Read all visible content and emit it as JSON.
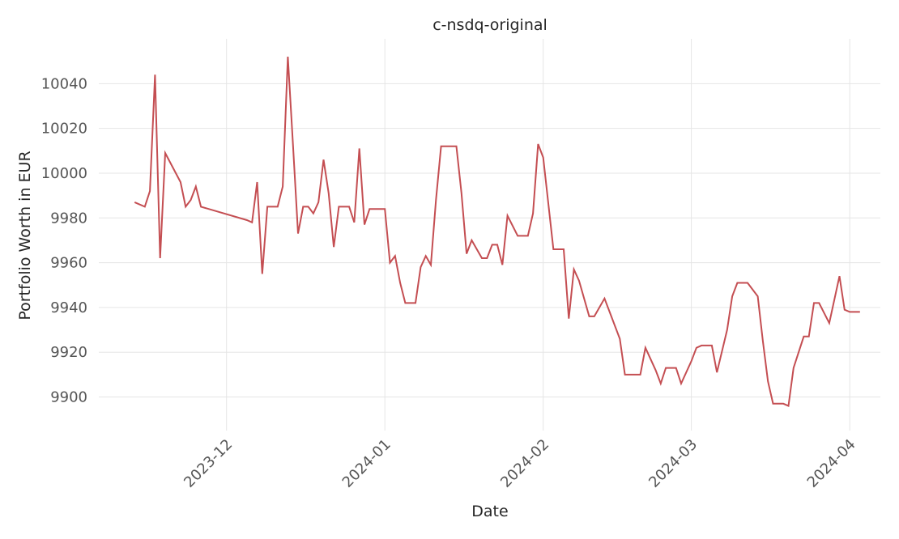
{
  "chart_data": {
    "type": "line",
    "title": "c-nsdq-original",
    "xlabel": "Date",
    "ylabel": "Portfolio Worth in EUR",
    "grid": true,
    "ylim": [
      9885,
      10060
    ],
    "xlim": [
      "2023-11-06",
      "2024-04-07"
    ],
    "y_ticks": [
      9900,
      9920,
      9940,
      9960,
      9980,
      10000,
      10020,
      10040
    ],
    "x_ticks": [
      {
        "date": "2023-12-01",
        "label": "2023-12"
      },
      {
        "date": "2024-01-01",
        "label": "2024-01"
      },
      {
        "date": "2024-02-01",
        "label": "2024-02"
      },
      {
        "date": "2024-03-01",
        "label": "2024-03"
      },
      {
        "date": "2024-04-01",
        "label": "2024-04"
      }
    ],
    "color": "#c44e52",
    "series": [
      {
        "x": [
          "2023-11-13",
          "2023-11-15",
          "2023-11-16",
          "2023-11-17",
          "2023-11-18",
          "2023-11-19",
          "2023-11-22",
          "2023-11-23",
          "2023-11-24",
          "2023-11-25",
          "2023-11-26",
          "2023-12-05",
          "2023-12-06",
          "2023-12-07",
          "2023-12-08",
          "2023-12-09",
          "2023-12-11",
          "2023-12-12",
          "2023-12-13",
          "2023-12-14",
          "2023-12-15",
          "2023-12-16",
          "2023-12-17",
          "2023-12-18",
          "2023-12-19",
          "2023-12-20",
          "2023-12-21",
          "2023-12-22",
          "2023-12-23",
          "2023-12-25",
          "2023-12-26",
          "2023-12-27",
          "2023-12-28",
          "2023-12-29",
          "2024-01-01",
          "2024-01-02",
          "2024-01-03",
          "2024-01-04",
          "2024-01-05",
          "2024-01-07",
          "2024-01-08",
          "2024-01-09",
          "2024-01-10",
          "2024-01-11",
          "2024-01-12",
          "2024-01-14",
          "2024-01-15",
          "2024-01-16",
          "2024-01-17",
          "2024-01-18",
          "2024-01-20",
          "2024-01-21",
          "2024-01-22",
          "2024-01-23",
          "2024-01-24",
          "2024-01-25",
          "2024-01-27",
          "2024-01-29",
          "2024-01-30",
          "2024-01-31",
          "2024-02-01",
          "2024-02-03",
          "2024-02-04",
          "2024-02-05",
          "2024-02-06",
          "2024-02-07",
          "2024-02-08",
          "2024-02-10",
          "2024-02-11",
          "2024-02-13",
          "2024-02-14",
          "2024-02-16",
          "2024-02-17",
          "2024-02-18",
          "2024-02-19",
          "2024-02-20",
          "2024-02-21",
          "2024-02-23",
          "2024-02-24",
          "2024-02-25",
          "2024-02-26",
          "2024-02-27",
          "2024-02-28",
          "2024-03-01",
          "2024-03-02",
          "2024-03-03",
          "2024-03-04",
          "2024-03-05",
          "2024-03-06",
          "2024-03-08",
          "2024-03-09",
          "2024-03-10",
          "2024-03-11",
          "2024-03-12",
          "2024-03-14",
          "2024-03-15",
          "2024-03-16",
          "2024-03-17",
          "2024-03-18",
          "2024-03-19",
          "2024-03-20",
          "2024-03-21",
          "2024-03-23",
          "2024-03-24",
          "2024-03-25",
          "2024-03-26",
          "2024-03-28",
          "2024-03-30",
          "2024-03-31",
          "2024-04-01",
          "2024-04-02",
          "2024-04-03"
        ],
        "y": [
          9987,
          9985,
          9992,
          10044,
          9962,
          10009,
          9996,
          9985,
          9988,
          9994,
          9985,
          9979,
          9978,
          9996,
          9955,
          9985,
          9985,
          9994,
          10052,
          10013,
          9973,
          9985,
          9985,
          9982,
          9987,
          10006,
          9991,
          9967,
          9985,
          9985,
          9978,
          10011,
          9977,
          9984,
          9984,
          9960,
          9963,
          9951,
          9942,
          9942,
          9958,
          9963,
          9959,
          9988,
          10012,
          10012,
          10012,
          9991,
          9964,
          9970,
          9962,
          9962,
          9968,
          9968,
          9959,
          9981,
          9972,
          9972,
          9982,
          10013,
          10007,
          9966,
          9966,
          9966,
          9935,
          9957,
          9952,
          9936,
          9936,
          9944,
          9938,
          9926,
          9910,
          9910,
          9910,
          9910,
          9922,
          9912,
          9906,
          9913,
          9913,
          9913,
          9906,
          9916,
          9922,
          9923,
          9923,
          9923,
          9911,
          9930,
          9945,
          9951,
          9951,
          9951,
          9945,
          9925,
          9907,
          9897,
          9897,
          9897,
          9896,
          9913,
          9927,
          9927,
          9942,
          9942,
          9933,
          9954,
          9939,
          9938,
          9938,
          9938
        ]
      }
    ]
  }
}
